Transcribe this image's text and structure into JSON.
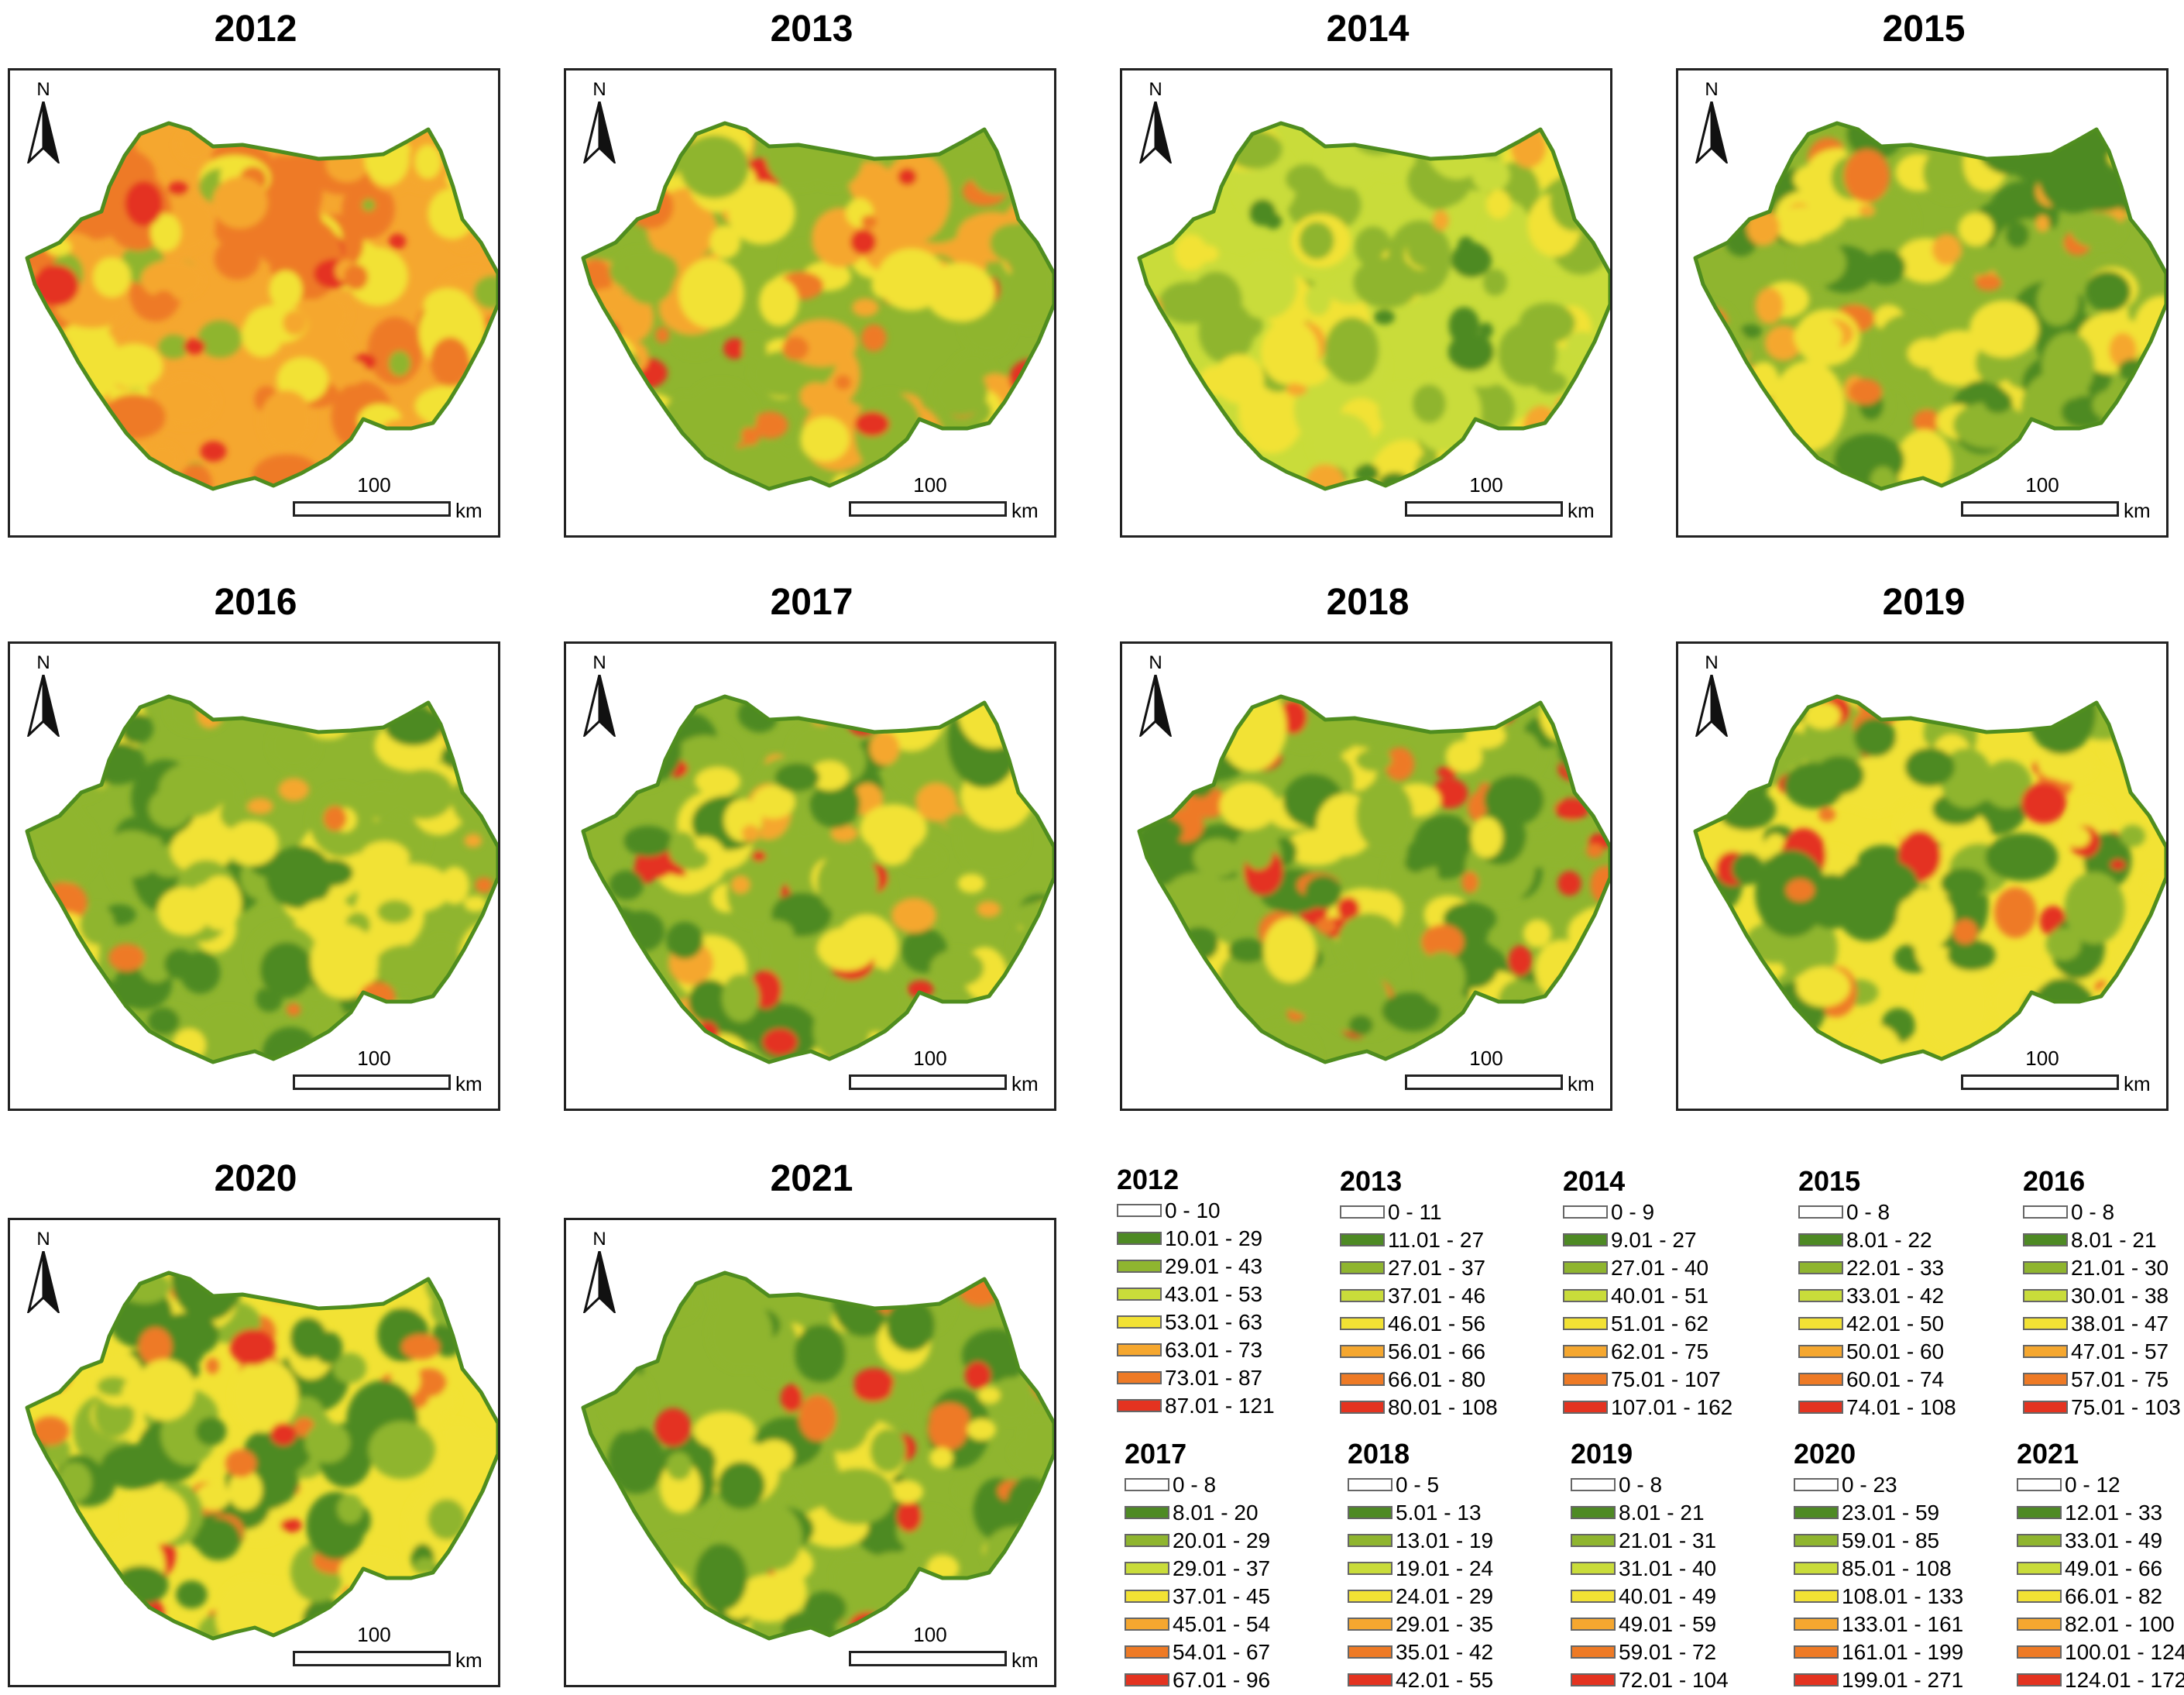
{
  "panel_common": {
    "north_label": "N",
    "scale_value": "100",
    "scale_unit": "km"
  },
  "colors": {
    "c0": "#ffffff",
    "c1": "#4e8a24",
    "c2": "#8fb52f",
    "c3": "#c9dc3a",
    "c4": "#f2e234",
    "c5": "#f5a72f",
    "c6": "#ee7a25",
    "c7": "#e43320",
    "outline": "#4f8d1f"
  },
  "panels": [
    {
      "year": "2012",
      "dominant": [
        "c5",
        "c6",
        "c4",
        "c7",
        "c2"
      ]
    },
    {
      "year": "2013",
      "dominant": [
        "c2",
        "c5",
        "c4",
        "c6",
        "c7"
      ]
    },
    {
      "year": "2014",
      "dominant": [
        "c3",
        "c2",
        "c4",
        "c5",
        "c1"
      ]
    },
    {
      "year": "2015",
      "dominant": [
        "c2",
        "c4",
        "c1",
        "c5",
        "c6"
      ]
    },
    {
      "year": "2016",
      "dominant": [
        "c2",
        "c4",
        "c1",
        "c5",
        "c6"
      ]
    },
    {
      "year": "2017",
      "dominant": [
        "c2",
        "c1",
        "c4",
        "c5",
        "c7"
      ]
    },
    {
      "year": "2018",
      "dominant": [
        "c2",
        "c1",
        "c4",
        "c6",
        "c7"
      ]
    },
    {
      "year": "2019",
      "dominant": [
        "c4",
        "c1",
        "c2",
        "c6",
        "c7"
      ]
    },
    {
      "year": "2020",
      "dominant": [
        "c4",
        "c1",
        "c2",
        "c6",
        "c7"
      ]
    },
    {
      "year": "2021",
      "dominant": [
        "c2",
        "c1",
        "c4",
        "c6",
        "c7"
      ]
    }
  ],
  "legends": [
    {
      "year": "2012",
      "classes": [
        "0 - 10",
        "10.01 - 29",
        "29.01 - 43",
        "43.01 - 53",
        "53.01 - 63",
        "63.01 - 73",
        "73.01 - 87",
        "87.01 - 121"
      ]
    },
    {
      "year": "2013",
      "classes": [
        "0 - 11",
        "11.01 - 27",
        "27.01 - 37",
        "37.01 - 46",
        "46.01 - 56",
        "56.01 - 66",
        "66.01 - 80",
        "80.01 - 108"
      ]
    },
    {
      "year": "2014",
      "classes": [
        "0 - 9",
        "9.01 - 27",
        "27.01 - 40",
        "40.01 - 51",
        "51.01 - 62",
        "62.01 - 75",
        "75.01 - 107",
        "107.01 - 162"
      ]
    },
    {
      "year": "2015",
      "classes": [
        "0 - 8",
        "8.01 - 22",
        "22.01 - 33",
        "33.01 - 42",
        "42.01 - 50",
        "50.01 - 60",
        "60.01 - 74",
        "74.01 - 108"
      ]
    },
    {
      "year": "2016",
      "classes": [
        "0 - 8",
        "8.01 - 21",
        "21.01 - 30",
        "30.01 - 38",
        "38.01 - 47",
        "47.01 - 57",
        "57.01 - 75",
        "75.01 - 103"
      ]
    },
    {
      "year": "2017",
      "classes": [
        "0 - 8",
        "8.01 - 20",
        "20.01 - 29",
        "29.01 - 37",
        "37.01 - 45",
        "45.01 - 54",
        "54.01 - 67",
        "67.01 - 96"
      ]
    },
    {
      "year": "2018",
      "classes": [
        "0 - 5",
        "5.01 - 13",
        "13.01 - 19",
        "19.01 - 24",
        "24.01 - 29",
        "29.01 - 35",
        "35.01 - 42",
        "42.01 - 55"
      ]
    },
    {
      "year": "2019",
      "classes": [
        "0 - 8",
        "8.01 - 21",
        "21.01 - 31",
        "31.01 - 40",
        "40.01 - 49",
        "49.01 - 59",
        "59.01 - 72",
        "72.01 - 104"
      ]
    },
    {
      "year": "2020",
      "classes": [
        "0 - 23",
        "23.01 - 59",
        "59.01 - 85",
        "85.01 - 108",
        "108.01 - 133",
        "133.01 - 161",
        "161.01 - 199",
        "199.01 - 271"
      ]
    },
    {
      "year": "2021",
      "classes": [
        "0 - 12",
        "12.01 - 33",
        "33.01 - 49",
        "49.01 - 66",
        "66.01 - 82",
        "82.01 - 100",
        "100.01 - 124",
        "124.01 - 172"
      ]
    }
  ]
}
